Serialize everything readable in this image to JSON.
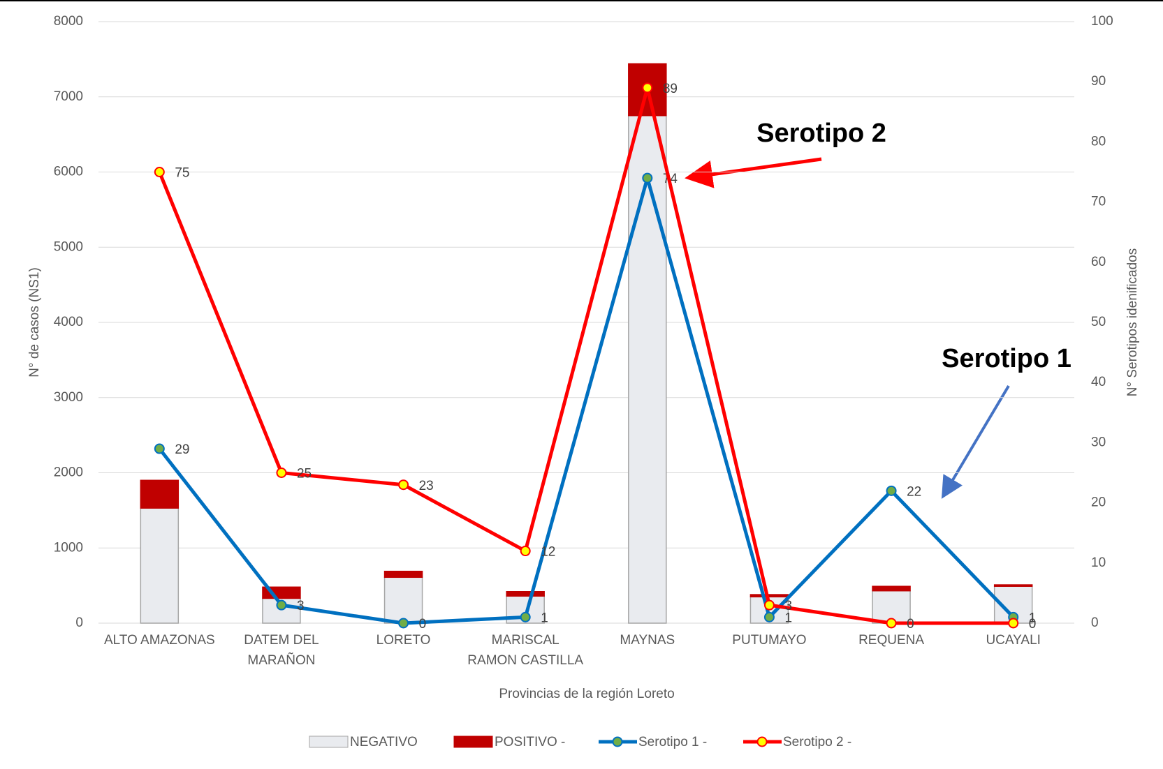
{
  "chart_data": {
    "type": "combo",
    "categories": [
      "ALTO AMAZONAS",
      "DATEM DEL MARAÑON",
      "LORETO",
      "MARISCAL RAMON CASTILLA",
      "MAYNAS",
      "PUTUMAYO",
      "REQUENA",
      "UCAYALI"
    ],
    "series": [
      {
        "name": "NEGATIVO",
        "type": "bar",
        "color": "#e9ebef",
        "values": [
          1530,
          330,
          610,
          360,
          6750,
          350,
          430,
          490
        ]
      },
      {
        "name": "POSITIVO -",
        "type": "bar",
        "color": "#c00000",
        "values": [
          370,
          150,
          80,
          60,
          690,
          30,
          60,
          20
        ]
      },
      {
        "name": "Serotipo 1 -",
        "type": "line",
        "axis": "y2",
        "color": "#0070c0",
        "marker_color": "#70ad47",
        "values": [
          29,
          3,
          0,
          1,
          74,
          1,
          22,
          1
        ]
      },
      {
        "name": "Serotipo 2 -",
        "type": "line",
        "axis": "y2",
        "color": "#ff0000",
        "marker_color": "#ffff00",
        "values": [
          75,
          25,
          23,
          12,
          89,
          3,
          0,
          0
        ]
      }
    ],
    "ylabel": "N° de casos (NS1)",
    "y2label": "N° Serotipos idenificados",
    "xlabel": "Provincias de la región Loreto",
    "ylim": [
      0,
      8000
    ],
    "yticks": [
      0,
      1000,
      2000,
      3000,
      4000,
      5000,
      6000,
      7000,
      8000
    ],
    "y2lim": [
      0,
      100
    ],
    "y2ticks": [
      0,
      10,
      20,
      30,
      40,
      50,
      60,
      70,
      80,
      90,
      100
    ],
    "grid": true,
    "legend": "bottom",
    "annotations": [
      "Serotipo 2",
      "Serotipo 1"
    ]
  }
}
